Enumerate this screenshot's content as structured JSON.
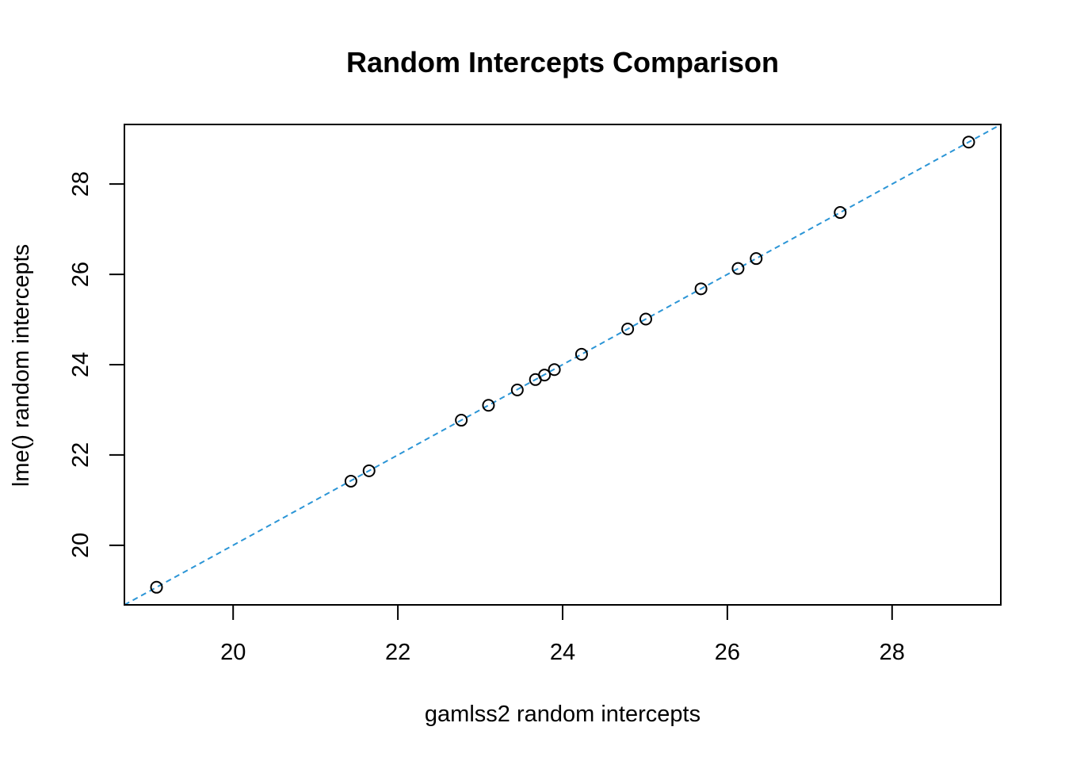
{
  "chart_data": {
    "type": "scatter",
    "title": "Random Intercepts Comparison",
    "xlabel": "gamlss2 random intercepts",
    "ylabel": "lme() random intercepts",
    "xlim": [
      18.68,
      29.32
    ],
    "ylim": [
      18.68,
      29.32
    ],
    "xticks": [
      20,
      22,
      24,
      26,
      28
    ],
    "yticks": [
      20,
      22,
      24,
      26,
      28
    ],
    "grid": false,
    "reference_line": {
      "type": "identity",
      "slope": 1,
      "intercept": 0,
      "style": "dashed",
      "color": "#2b95d6"
    },
    "point_color": "#000000",
    "points": [
      {
        "x": 19.07,
        "y": 19.07
      },
      {
        "x": 21.43,
        "y": 21.42
      },
      {
        "x": 21.65,
        "y": 21.65
      },
      {
        "x": 22.77,
        "y": 22.77
      },
      {
        "x": 23.1,
        "y": 23.1
      },
      {
        "x": 23.45,
        "y": 23.44
      },
      {
        "x": 23.67,
        "y": 23.67
      },
      {
        "x": 23.78,
        "y": 23.77
      },
      {
        "x": 23.9,
        "y": 23.89
      },
      {
        "x": 24.23,
        "y": 24.23
      },
      {
        "x": 24.79,
        "y": 24.79
      },
      {
        "x": 25.01,
        "y": 25.01
      },
      {
        "x": 25.68,
        "y": 25.68
      },
      {
        "x": 26.13,
        "y": 26.13
      },
      {
        "x": 26.35,
        "y": 26.35
      },
      {
        "x": 27.37,
        "y": 27.37
      },
      {
        "x": 28.93,
        "y": 28.93
      }
    ]
  }
}
